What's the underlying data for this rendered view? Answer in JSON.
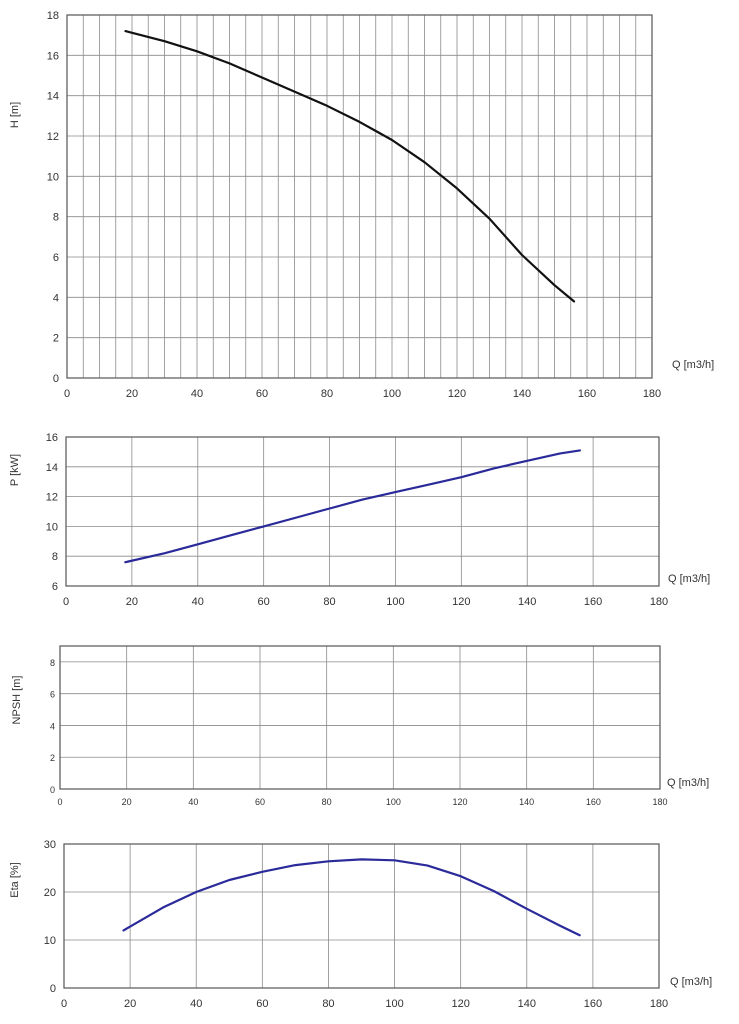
{
  "chart_data": [
    {
      "type": "line",
      "ylabel": "H [m]",
      "xlabel": "Q [m3/h]",
      "xlim": [
        0,
        180
      ],
      "ylim": [
        0,
        18
      ],
      "xticks": [
        0,
        20,
        40,
        60,
        80,
        100,
        120,
        140,
        160,
        180
      ],
      "yticks": [
        0,
        2,
        4,
        6,
        8,
        10,
        12,
        14,
        16,
        18
      ],
      "xtick_labels": [
        "0",
        "20",
        "40",
        "60",
        "80",
        "100",
        "120",
        "140",
        "160",
        "180"
      ],
      "ytick_labels": [
        "0",
        "2",
        "4",
        "6",
        "8",
        "10",
        "12",
        "14",
        "16",
        "18"
      ],
      "grid_x_step": 5,
      "grid_y_step": 2,
      "series": [
        {
          "name": "H",
          "color": "#111111",
          "x": [
            18,
            30,
            40,
            50,
            60,
            70,
            80,
            90,
            100,
            110,
            120,
            130,
            140,
            150,
            156
          ],
          "y": [
            17.2,
            16.7,
            16.2,
            15.6,
            14.9,
            14.2,
            13.5,
            12.7,
            11.8,
            10.7,
            9.4,
            7.9,
            6.1,
            4.6,
            3.8
          ]
        }
      ]
    },
    {
      "type": "line",
      "ylabel": "P [kW]",
      "xlabel": "Q [m3/h]",
      "xlim": [
        0,
        180
      ],
      "ylim": [
        6,
        16
      ],
      "xticks": [
        0,
        20,
        40,
        60,
        80,
        100,
        120,
        140,
        160,
        180
      ],
      "yticks": [
        6,
        8,
        10,
        12,
        14,
        16
      ],
      "xtick_labels": [
        "0",
        "20",
        "40",
        "60",
        "80",
        "100",
        "120",
        "140",
        "160",
        "180"
      ],
      "ytick_labels": [
        "6",
        "8",
        "10",
        "12",
        "14",
        "16"
      ],
      "grid_x_step": 20,
      "grid_y_step": 2,
      "series": [
        {
          "name": "P",
          "color": "#2a2a9a",
          "x": [
            18,
            30,
            40,
            50,
            60,
            70,
            80,
            90,
            100,
            110,
            120,
            130,
            140,
            150,
            156
          ],
          "y": [
            7.6,
            8.2,
            8.8,
            9.4,
            10.0,
            10.6,
            11.2,
            11.8,
            12.3,
            12.8,
            13.3,
            13.9,
            14.4,
            14.9,
            15.1
          ]
        }
      ]
    },
    {
      "type": "line",
      "ylabel": "NPSH [m]",
      "xlabel": "Q [m3/h]",
      "xlim": [
        0,
        180
      ],
      "ylim": [
        0,
        9
      ],
      "xticks": [
        0,
        20,
        40,
        60,
        80,
        100,
        120,
        140,
        160,
        180
      ],
      "yticks": [
        0,
        2,
        4,
        6,
        8
      ],
      "xtick_labels": [
        "0",
        "20",
        "40",
        "60",
        "80",
        "100",
        "120",
        "140",
        "160",
        "180"
      ],
      "ytick_labels": [
        "0",
        "2",
        "4",
        "6",
        "8"
      ],
      "grid_x_step": 20,
      "grid_y_step": 2,
      "series": []
    },
    {
      "type": "line",
      "ylabel": "Eta [%]",
      "xlabel": "Q [m3/h]",
      "xlim": [
        0,
        180
      ],
      "ylim": [
        0,
        30
      ],
      "xticks": [
        0,
        20,
        40,
        60,
        80,
        100,
        120,
        140,
        160,
        180
      ],
      "yticks": [
        0,
        10,
        20,
        30
      ],
      "xtick_labels": [
        "0",
        "20",
        "40",
        "60",
        "80",
        "100",
        "120",
        "140",
        "160",
        "180"
      ],
      "ytick_labels": [
        "0",
        "10",
        "20",
        "30"
      ],
      "grid_x_step": 20,
      "grid_y_step": 10,
      "series": [
        {
          "name": "Eta",
          "color": "#2a2a9a",
          "x": [
            18,
            30,
            40,
            50,
            60,
            70,
            80,
            90,
            100,
            110,
            120,
            130,
            140,
            150,
            156
          ],
          "y": [
            12,
            16.8,
            20,
            22.5,
            24.2,
            25.6,
            26.4,
            26.8,
            26.6,
            25.5,
            23.3,
            20.2,
            16.5,
            13.0,
            11.0
          ]
        }
      ]
    }
  ]
}
